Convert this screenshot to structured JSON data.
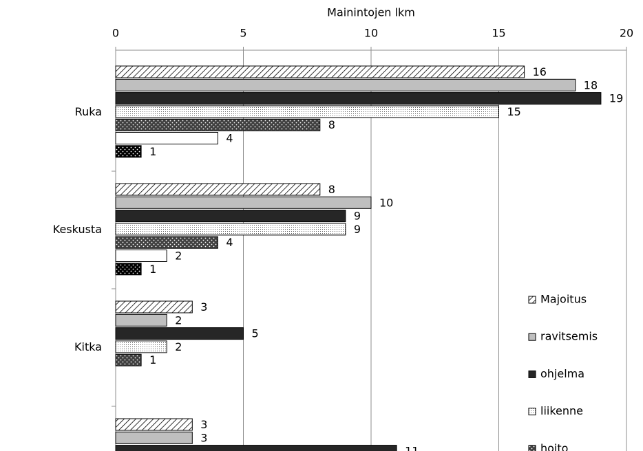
{
  "chart_data": {
    "type": "hbar",
    "x_label": "Mainintojen lkm",
    "categories": [
      "Ruka",
      "Keskusta",
      "Kitka",
      null
    ],
    "series": [
      {
        "name": "Majoitus",
        "color": "#ffffff",
        "pattern": "hatch",
        "values": [
          16,
          8,
          3,
          3
        ]
      },
      {
        "name": "ravitsemis",
        "color": "#bfbfbf",
        "pattern": "solid",
        "values": [
          18,
          10,
          2,
          3
        ]
      },
      {
        "name": "ohjelma",
        "color": "#262626",
        "pattern": "solid",
        "values": [
          19,
          9,
          5,
          11
        ]
      },
      {
        "name": "liikenne",
        "color": "#ffffff",
        "pattern": "fine-dots",
        "values": [
          15,
          9,
          2,
          null
        ]
      },
      {
        "name": "hoito",
        "color": "#404040",
        "pattern": "dots",
        "values": [
          8,
          4,
          1,
          null
        ]
      },
      {
        "name": null,
        "color": "#ffffff",
        "pattern": "solid",
        "values": [
          4,
          2,
          null,
          null
        ]
      },
      {
        "name": null,
        "color": "#000000",
        "pattern": "dots",
        "values": [
          1,
          1,
          null,
          null
        ]
      }
    ],
    "xlim": [
      0,
      20
    ],
    "xticks": [
      0,
      5,
      10,
      15,
      20
    ],
    "grid": true,
    "legend": "right"
  }
}
